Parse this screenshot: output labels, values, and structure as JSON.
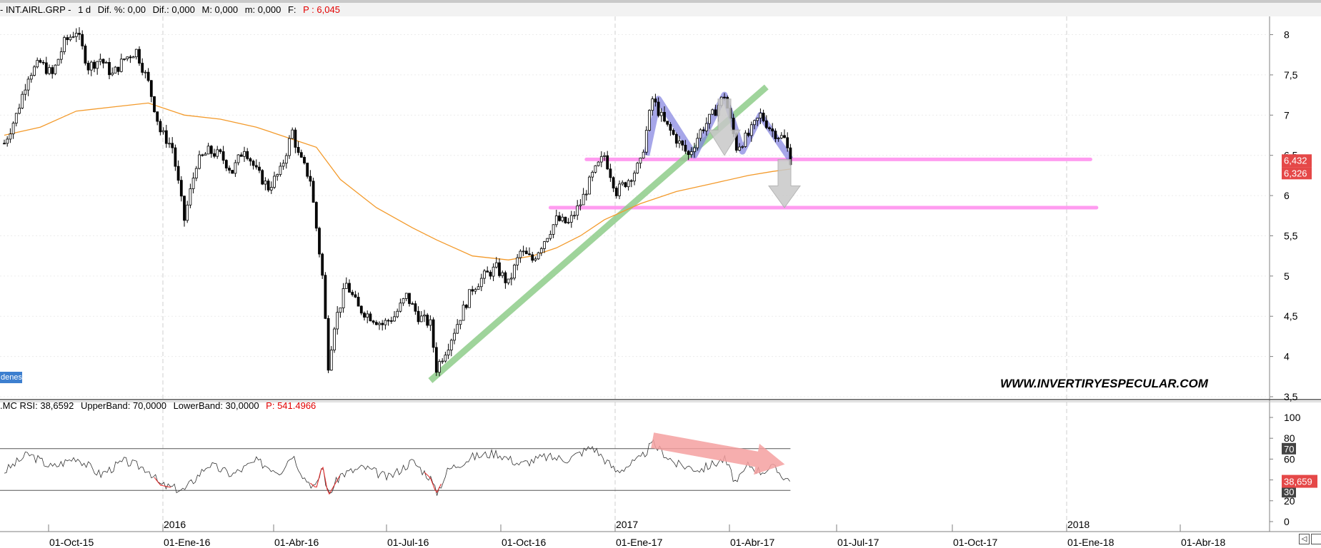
{
  "header": {
    "symbol": "- INT.AIRL.GRP -",
    "interval": "1 d",
    "dif_pct": "Dif. %: 0,00",
    "dif": "Dif.: 0,000",
    "max": "M: 0,000",
    "min": "m: 0,000",
    "f": "F:",
    "price": "P : 6,045"
  },
  "orders_badge": "denes",
  "watermark": "WWW.INVERTIRYESPECULAR.COM",
  "rsi_header": {
    "label": ".MC RSI: 38,6592",
    "upper": "UpperBand: 70,0000",
    "lower": "LowerBand: 30,0000",
    "price": "P: 541.4966"
  },
  "price_badges": {
    "last": "6,432",
    "ma": "6,326"
  },
  "rsi_badges": {
    "upper": "70",
    "value": "38,659",
    "lower": "30"
  },
  "colors": {
    "ma_line": "#f39a2b",
    "trendline": "#8fcd8a",
    "support": "#ff9cf0",
    "pattern": "#8080e0",
    "arrow_grey": "#c8c8c8",
    "rsi_arrow": "#f4a0a0",
    "badge_red": "#e54848"
  },
  "chart_data": [
    {
      "type": "candlestick",
      "title": "",
      "ylim": [
        3.5,
        8.2
      ],
      "y_ticks": [
        "8",
        "7,5",
        "7",
        "6,5",
        "6",
        "5,5",
        "5",
        "4,5",
        "4",
        "3,5"
      ],
      "year_labels": [
        "2016",
        "2017",
        "2018"
      ],
      "x_ticks": [
        "01-Oct-15",
        "01-Ene-16",
        "01-Abr-16",
        "01-Jul-16",
        "01-Oct-16",
        "01-Ene-17",
        "01-Abr-17",
        "01-Jul-17",
        "01-Oct-17",
        "01-Ene-18",
        "01-Abr-18"
      ],
      "last_price": 6.432,
      "moving_average_last": 6.326,
      "price_path": [
        {
          "t": 0,
          "v": 6.65
        },
        {
          "t": 2,
          "v": 7.0
        },
        {
          "t": 4,
          "v": 7.5
        },
        {
          "t": 6,
          "v": 7.65
        },
        {
          "t": 8,
          "v": 7.5
        },
        {
          "t": 10,
          "v": 7.9
        },
        {
          "t": 12,
          "v": 8.05
        },
        {
          "t": 14,
          "v": 7.6
        },
        {
          "t": 16,
          "v": 7.7
        },
        {
          "t": 18,
          "v": 7.5
        },
        {
          "t": 20,
          "v": 7.7
        },
        {
          "t": 22,
          "v": 7.8
        },
        {
          "t": 24,
          "v": 7.4
        },
        {
          "t": 26,
          "v": 6.8
        },
        {
          "t": 28,
          "v": 6.6
        },
        {
          "t": 30,
          "v": 5.7
        },
        {
          "t": 32,
          "v": 6.4
        },
        {
          "t": 34,
          "v": 6.55
        },
        {
          "t": 36,
          "v": 6.5
        },
        {
          "t": 38,
          "v": 6.3
        },
        {
          "t": 40,
          "v": 6.6
        },
        {
          "t": 42,
          "v": 6.3
        },
        {
          "t": 44,
          "v": 6.1
        },
        {
          "t": 46,
          "v": 6.3
        },
        {
          "t": 48,
          "v": 6.8
        },
        {
          "t": 49,
          "v": 6.5
        },
        {
          "t": 51,
          "v": 6.2
        },
        {
          "t": 52,
          "v": 5.6
        },
        {
          "t": 53,
          "v": 5.0
        },
        {
          "t": 54,
          "v": 3.9
        },
        {
          "t": 55,
          "v": 4.4
        },
        {
          "t": 57,
          "v": 4.9
        },
        {
          "t": 59,
          "v": 4.6
        },
        {
          "t": 61,
          "v": 4.5
        },
        {
          "t": 63,
          "v": 4.4
        },
        {
          "t": 65,
          "v": 4.5
        },
        {
          "t": 67,
          "v": 4.75
        },
        {
          "t": 69,
          "v": 4.5
        },
        {
          "t": 71,
          "v": 4.4
        },
        {
          "t": 72,
          "v": 3.85
        },
        {
          "t": 74,
          "v": 4.15
        },
        {
          "t": 76,
          "v": 4.5
        },
        {
          "t": 78,
          "v": 4.85
        },
        {
          "t": 80,
          "v": 5.0
        },
        {
          "t": 82,
          "v": 5.1
        },
        {
          "t": 84,
          "v": 4.9
        },
        {
          "t": 86,
          "v": 5.3
        },
        {
          "t": 88,
          "v": 5.2
        },
        {
          "t": 90,
          "v": 5.45
        },
        {
          "t": 92,
          "v": 5.7
        },
        {
          "t": 94,
          "v": 5.65
        },
        {
          "t": 96,
          "v": 5.9
        },
        {
          "t": 98,
          "v": 6.25
        },
        {
          "t": 100,
          "v": 6.5
        },
        {
          "t": 102,
          "v": 6.05
        },
        {
          "t": 104,
          "v": 6.2
        },
        {
          "t": 106,
          "v": 6.4
        },
        {
          "t": 108,
          "v": 7.2
        },
        {
          "t": 110,
          "v": 6.9
        },
        {
          "t": 112,
          "v": 6.7
        },
        {
          "t": 114,
          "v": 6.5
        },
        {
          "t": 116,
          "v": 6.8
        },
        {
          "t": 118,
          "v": 7.0
        },
        {
          "t": 120,
          "v": 7.25
        },
        {
          "t": 122,
          "v": 6.6
        },
        {
          "t": 124,
          "v": 6.75
        },
        {
          "t": 126,
          "v": 7.0
        },
        {
          "t": 128,
          "v": 6.8
        },
        {
          "t": 130,
          "v": 6.7
        },
        {
          "t": 131,
          "v": 6.45
        }
      ],
      "moving_average": [
        {
          "t": 0,
          "v": 6.75
        },
        {
          "t": 6,
          "v": 6.85
        },
        {
          "t": 12,
          "v": 7.05
        },
        {
          "t": 18,
          "v": 7.1
        },
        {
          "t": 24,
          "v": 7.15
        },
        {
          "t": 30,
          "v": 7.0
        },
        {
          "t": 36,
          "v": 6.95
        },
        {
          "t": 42,
          "v": 6.85
        },
        {
          "t": 48,
          "v": 6.7
        },
        {
          "t": 52,
          "v": 6.6
        },
        {
          "t": 56,
          "v": 6.2
        },
        {
          "t": 62,
          "v": 5.85
        },
        {
          "t": 68,
          "v": 5.6
        },
        {
          "t": 72,
          "v": 5.45
        },
        {
          "t": 78,
          "v": 5.25
        },
        {
          "t": 84,
          "v": 5.2
        },
        {
          "t": 88,
          "v": 5.25
        },
        {
          "t": 92,
          "v": 5.35
        },
        {
          "t": 96,
          "v": 5.5
        },
        {
          "t": 100,
          "v": 5.7
        },
        {
          "t": 106,
          "v": 5.9
        },
        {
          "t": 112,
          "v": 6.05
        },
        {
          "t": 118,
          "v": 6.15
        },
        {
          "t": 124,
          "v": 6.25
        },
        {
          "t": 128,
          "v": 6.3
        },
        {
          "t": 131,
          "v": 6.33
        }
      ],
      "trendline": [
        {
          "t": 71,
          "v": 3.7
        },
        {
          "t": 127,
          "v": 7.35
        }
      ],
      "support_levels": [
        {
          "value": 6.45,
          "t_start": 97,
          "t_end": 181
        },
        {
          "value": 5.85,
          "t_start": 91,
          "t_end": 182
        }
      ],
      "pattern_outline": [
        {
          "t": 107,
          "v": 6.5
        },
        {
          "t": 109,
          "v": 7.2
        },
        {
          "t": 115,
          "v": 6.5
        },
        {
          "t": 120,
          "v": 7.25
        },
        {
          "t": 123,
          "v": 6.55
        },
        {
          "t": 126,
          "v": 7.0
        },
        {
          "t": 131,
          "v": 6.45
        }
      ],
      "down_arrows": [
        {
          "t": 120,
          "v_top": 7.2,
          "v_bottom": 6.5
        },
        {
          "t": 130,
          "v_top": 6.45,
          "v_bottom": 5.85
        }
      ]
    },
    {
      "type": "line",
      "title": "",
      "ylim": [
        0,
        100
      ],
      "y_ticks": [
        "100",
        "80",
        "60",
        "40",
        "20",
        "0"
      ],
      "bands": {
        "upper": 70,
        "lower": 30
      },
      "last_value": 38.659,
      "rsi_path": [
        {
          "t": 0,
          "v": 48
        },
        {
          "t": 4,
          "v": 65
        },
        {
          "t": 8,
          "v": 52
        },
        {
          "t": 12,
          "v": 62
        },
        {
          "t": 16,
          "v": 45
        },
        {
          "t": 20,
          "v": 58
        },
        {
          "t": 24,
          "v": 50
        },
        {
          "t": 26,
          "v": 35
        },
        {
          "t": 30,
          "v": 30
        },
        {
          "t": 34,
          "v": 55
        },
        {
          "t": 38,
          "v": 45
        },
        {
          "t": 42,
          "v": 58
        },
        {
          "t": 46,
          "v": 48
        },
        {
          "t": 48,
          "v": 65
        },
        {
          "t": 50,
          "v": 42
        },
        {
          "t": 52,
          "v": 32
        },
        {
          "t": 53,
          "v": 55
        },
        {
          "t": 54,
          "v": 25
        },
        {
          "t": 56,
          "v": 45
        },
        {
          "t": 60,
          "v": 52
        },
        {
          "t": 64,
          "v": 42
        },
        {
          "t": 68,
          "v": 58
        },
        {
          "t": 71,
          "v": 42
        },
        {
          "t": 72,
          "v": 27
        },
        {
          "t": 74,
          "v": 50
        },
        {
          "t": 78,
          "v": 62
        },
        {
          "t": 82,
          "v": 66
        },
        {
          "t": 86,
          "v": 55
        },
        {
          "t": 90,
          "v": 62
        },
        {
          "t": 94,
          "v": 60
        },
        {
          "t": 98,
          "v": 72
        },
        {
          "t": 102,
          "v": 48
        },
        {
          "t": 106,
          "v": 60
        },
        {
          "t": 108,
          "v": 75
        },
        {
          "t": 112,
          "v": 55
        },
        {
          "t": 116,
          "v": 50
        },
        {
          "t": 120,
          "v": 60
        },
        {
          "t": 122,
          "v": 36
        },
        {
          "t": 124,
          "v": 55
        },
        {
          "t": 126,
          "v": 48
        },
        {
          "t": 128,
          "v": 52
        },
        {
          "t": 131,
          "v": 38.66
        }
      ],
      "trend_arrow": [
        {
          "t": 108,
          "v": 78
        },
        {
          "t": 131,
          "v": 55
        }
      ]
    }
  ]
}
